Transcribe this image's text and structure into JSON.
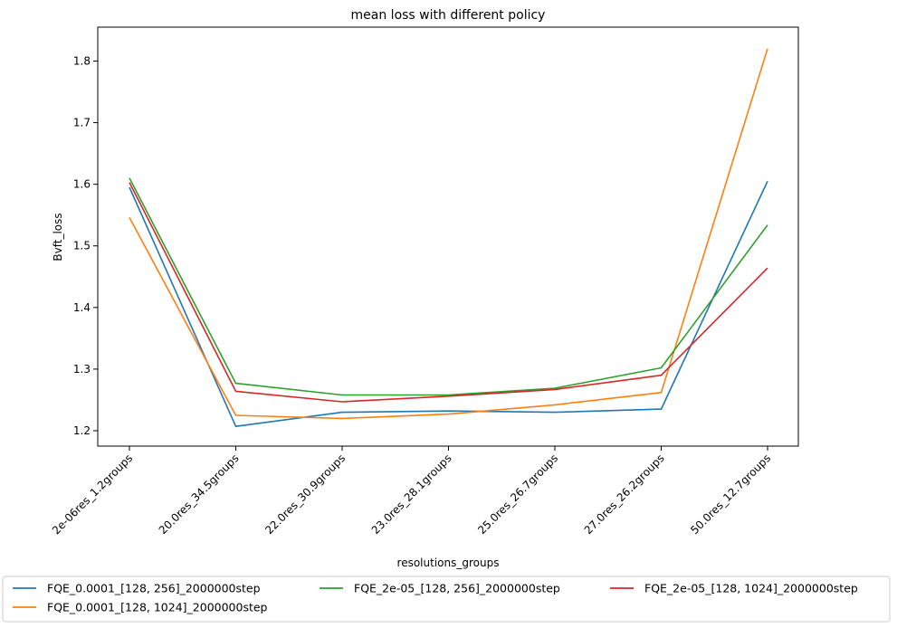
{
  "chart_data": {
    "type": "line",
    "title": "mean loss with different policy",
    "xlabel": "resolutions_groups",
    "ylabel": "Bvft_loss",
    "categories": [
      "2e-06res_1.2groups",
      "20.0res_34.5groups",
      "22.0res_30.9groups",
      "23.0res_28.1groups",
      "25.0res_26.7groups",
      "27.0res_26.2groups",
      "50.0res_12.7groups"
    ],
    "yticks": [
      "1.2",
      "1.3",
      "1.4",
      "1.5",
      "1.6",
      "1.7",
      "1.8"
    ],
    "ylim": [
      1.175,
      1.855
    ],
    "grid": false,
    "legend_position": "bottom",
    "series": [
      {
        "name": "FQE_0.0001_[128, 256]_2000000step",
        "color": "#1f77b4",
        "values": [
          1.595,
          1.207,
          1.23,
          1.232,
          1.23,
          1.235,
          1.605
        ]
      },
      {
        "name": "FQE_0.0001_[128, 1024]_2000000step",
        "color": "#ff7f0e",
        "values": [
          1.546,
          1.225,
          1.22,
          1.227,
          1.242,
          1.262,
          1.82
        ]
      },
      {
        "name": "FQE_2e-05_[128, 256]_2000000step",
        "color": "#2ca02c",
        "values": [
          1.61,
          1.277,
          1.258,
          1.258,
          1.269,
          1.302,
          1.534
        ]
      },
      {
        "name": "FQE_2e-05_[128, 1024]_2000000step",
        "color": "#d62728",
        "values": [
          1.603,
          1.264,
          1.247,
          1.256,
          1.267,
          1.29,
          1.464
        ]
      }
    ]
  }
}
